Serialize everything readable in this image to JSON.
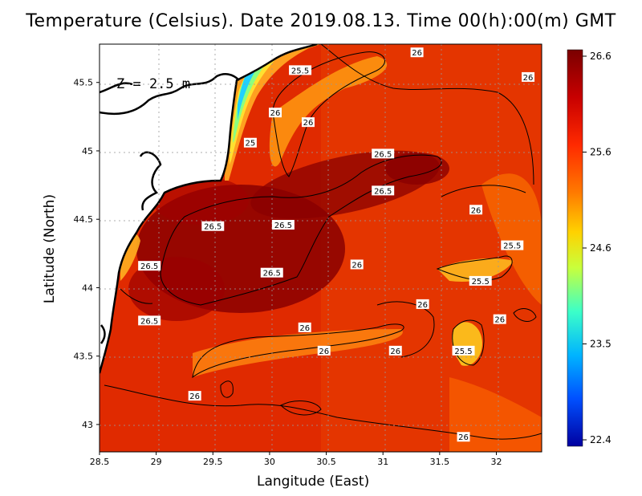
{
  "title": "Temperature (Celsius). Date 2019.08.13. Time 00(h):00(m)  GMT",
  "depth_label": "Z = 2.5 m",
  "map": {
    "x_axis": {
      "label": "Langitude (East)",
      "ticks": [
        "28.5",
        "29",
        "29.5",
        "30",
        "30.5",
        "31",
        "31.5",
        "32"
      ],
      "range": [
        28.5,
        32.4
      ]
    },
    "y_axis": {
      "label": "Latitude (North)",
      "ticks": [
        "43",
        "43.5",
        "44",
        "44.5",
        "45",
        "45.5"
      ],
      "range": [
        42.8,
        45.78
      ]
    }
  },
  "colorbar": {
    "ticks": [
      "26.6",
      "25.6",
      "24.6",
      "23.5",
      "22.4"
    ],
    "colors": [
      "#7a0000",
      "#c80000",
      "#ff2a00",
      "#ff7a00",
      "#ffd200",
      "#c8ff3c",
      "#3cffc8",
      "#00b4ff",
      "#0050ff",
      "#0000a0"
    ]
  },
  "contour_labels": [
    {
      "text": "26",
      "lon": 31.3,
      "lat": 45.72
    },
    {
      "text": "25.5",
      "lon": 30.27,
      "lat": 45.59
    },
    {
      "text": "26",
      "lon": 32.28,
      "lat": 45.54
    },
    {
      "text": "26",
      "lon": 30.05,
      "lat": 45.28
    },
    {
      "text": "26",
      "lon": 30.34,
      "lat": 45.21
    },
    {
      "text": "25",
      "lon": 29.83,
      "lat": 45.06
    },
    {
      "text": "26.5",
      "lon": 31.0,
      "lat": 44.98
    },
    {
      "text": "26.5",
      "lon": 31.0,
      "lat": 44.71
    },
    {
      "text": "26",
      "lon": 31.82,
      "lat": 44.57
    },
    {
      "text": "26.5",
      "lon": 30.12,
      "lat": 44.46
    },
    {
      "text": "26.5",
      "lon": 29.5,
      "lat": 44.45
    },
    {
      "text": "25.5",
      "lon": 32.14,
      "lat": 44.31
    },
    {
      "text": "26",
      "lon": 30.77,
      "lat": 44.17
    },
    {
      "text": "26.5",
      "lon": 28.94,
      "lat": 44.16
    },
    {
      "text": "26.5",
      "lon": 30.02,
      "lat": 44.11
    },
    {
      "text": "25.5",
      "lon": 31.86,
      "lat": 44.05
    },
    {
      "text": "26",
      "lon": 31.35,
      "lat": 43.88
    },
    {
      "text": "26.5",
      "lon": 28.94,
      "lat": 43.76
    },
    {
      "text": "26",
      "lon": 32.03,
      "lat": 43.77
    },
    {
      "text": "26",
      "lon": 30.31,
      "lat": 43.71
    },
    {
      "text": "26",
      "lon": 30.48,
      "lat": 43.54
    },
    {
      "text": "26",
      "lon": 31.11,
      "lat": 43.54
    },
    {
      "text": "25.5",
      "lon": 31.71,
      "lat": 43.54
    },
    {
      "text": "26",
      "lon": 29.34,
      "lat": 43.21
    },
    {
      "text": "26",
      "lon": 31.71,
      "lat": 42.91
    }
  ]
}
